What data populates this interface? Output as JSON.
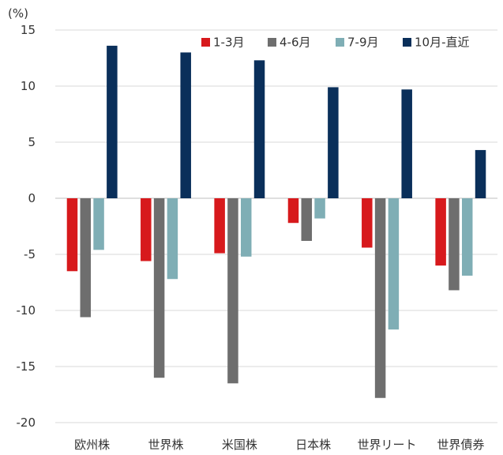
{
  "chart_data": {
    "type": "bar",
    "unit_label": "(%)",
    "categories": [
      "欧州株",
      "世界株",
      "米国株",
      "日本株",
      "世界リート",
      "世界債券"
    ],
    "series": [
      {
        "name": "1-3月",
        "color": "#d7191c",
        "values": [
          -6.5,
          -5.6,
          -4.9,
          -2.2,
          -4.4,
          -6.0
        ]
      },
      {
        "name": "4-6月",
        "color": "#6e6e6e",
        "values": [
          -10.6,
          -16.0,
          -16.5,
          -3.8,
          -17.8,
          -8.2
        ]
      },
      {
        "name": "7-9月",
        "color": "#7faeb5",
        "values": [
          -4.6,
          -7.2,
          -5.2,
          -1.8,
          -11.7,
          -6.9
        ]
      },
      {
        "name": "10月-直近",
        "color": "#0a2f5a",
        "values": [
          13.6,
          13.0,
          12.3,
          9.9,
          9.7,
          4.3
        ]
      }
    ],
    "ylim": [
      -20,
      15
    ],
    "yticks": [
      15,
      10,
      5,
      0,
      -5,
      -10,
      -15,
      -20
    ],
    "grid": true,
    "legend_position": "top-right"
  }
}
